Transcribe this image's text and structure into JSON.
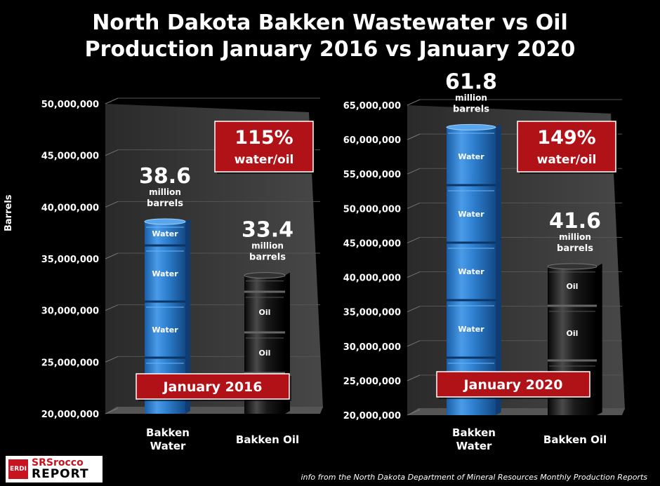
{
  "title_line1": "North Dakota Bakken Wastewater vs Oil",
  "title_line2": "Production January 2016 vs January 2020",
  "ylabel": "Barrels",
  "footer": "info from the North Dakota Department of Mineral Resources Monthly Production Reports",
  "logo": {
    "badge": "ERDI",
    "line1": "SRSrocco",
    "line2": "REPORT"
  },
  "barrel_labels": {
    "water": "Water",
    "oil": "Oil"
  },
  "colors": {
    "water": "#2e7fd0",
    "oil": "#1a1a1a",
    "badge": "#b01218",
    "wall": "#3a3a3a"
  },
  "chart_data": [
    {
      "type": "bar",
      "period": "January 2016",
      "ratio_label": "115%",
      "ratio_sub": "water/oil",
      "categories": [
        "Bakken\nWater",
        "Bakken Oil"
      ],
      "values": [
        38600000,
        33400000
      ],
      "value_labels": [
        "38.6",
        "33.4"
      ],
      "value_unit": [
        "million",
        "barrels"
      ],
      "ylim": [
        20000000,
        50000000
      ],
      "ticks": [
        "20,000,000",
        "25,000,000",
        "30,000,000",
        "35,000,000",
        "40,000,000",
        "45,000,000",
        "50,000,000"
      ]
    },
    {
      "type": "bar",
      "period": "January 2020",
      "ratio_label": "149%",
      "ratio_sub": "water/oil",
      "categories": [
        "Bakken\nWater",
        "Bakken Oil"
      ],
      "values": [
        61800000,
        41600000
      ],
      "value_labels": [
        "61.8",
        "41.6"
      ],
      "value_unit": [
        "million",
        "barrels"
      ],
      "ylim": [
        20000000,
        65000000
      ],
      "ticks": [
        "20,000,000",
        "25,000,000",
        "30,000,000",
        "35,000,000",
        "40,000,000",
        "45,000,000",
        "50,000,000",
        "55,000,000",
        "60,000,000",
        "65,000,000"
      ]
    }
  ]
}
